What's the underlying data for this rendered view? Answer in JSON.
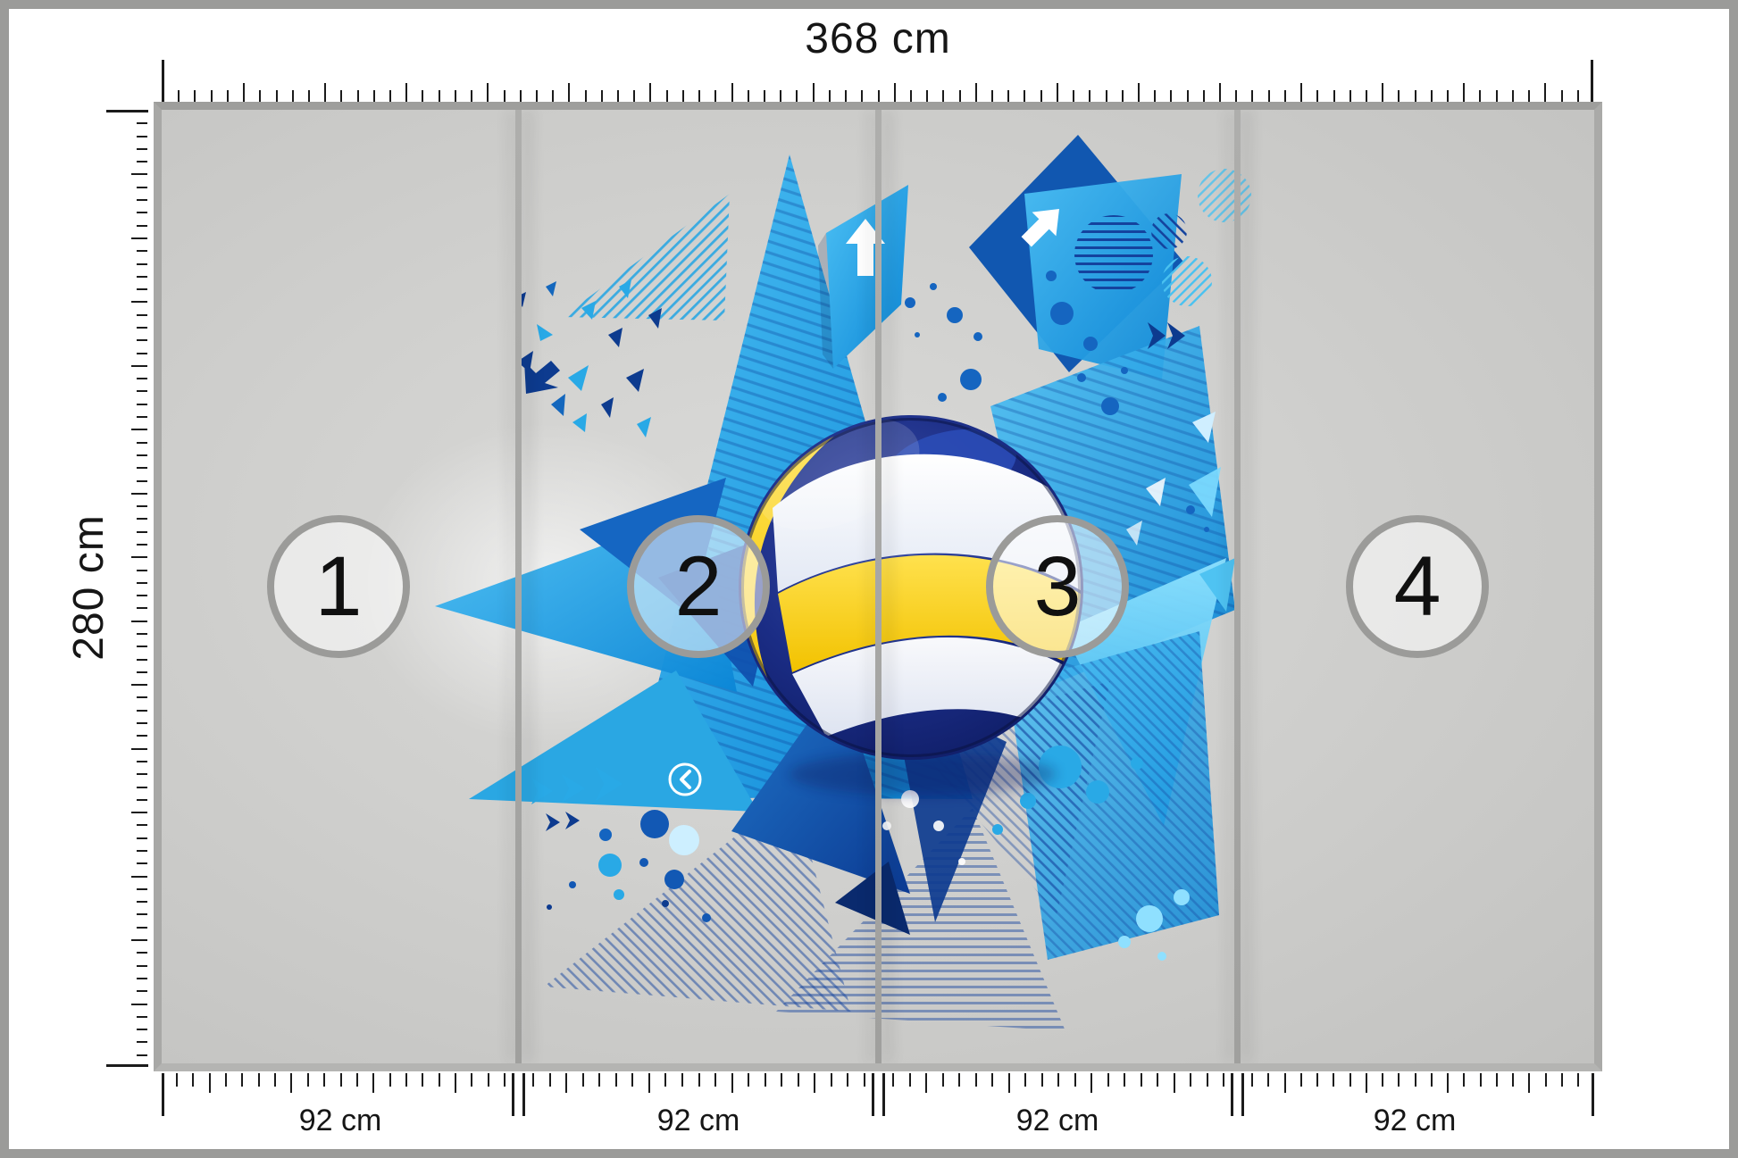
{
  "page": {
    "frame_color": "#9b9b99",
    "background": "#ffffff"
  },
  "mural": {
    "width_label": "368 cm",
    "height_label": "280 cm",
    "panel_width_labels": [
      "92 cm",
      "92 cm",
      "92 cm",
      "92 cm"
    ],
    "panels": [
      {
        "number": "1"
      },
      {
        "number": "2"
      },
      {
        "number": "3"
      },
      {
        "number": "4"
      }
    ]
  },
  "artwork": {
    "icons": [
      "up-arrow-icon",
      "diagonal-arrow-icon",
      "back-circle-icon",
      "chevron-right-icon"
    ],
    "colors": {
      "bright_blue": "#29a9e6",
      "deep_blue": "#1565c0",
      "navy": "#0d3b8f",
      "cyan_light": "#7edcff",
      "ball_navy": "#1b2d86",
      "ball_yellow": "#ffd21e",
      "badge_ring": "#9b9b99"
    }
  }
}
